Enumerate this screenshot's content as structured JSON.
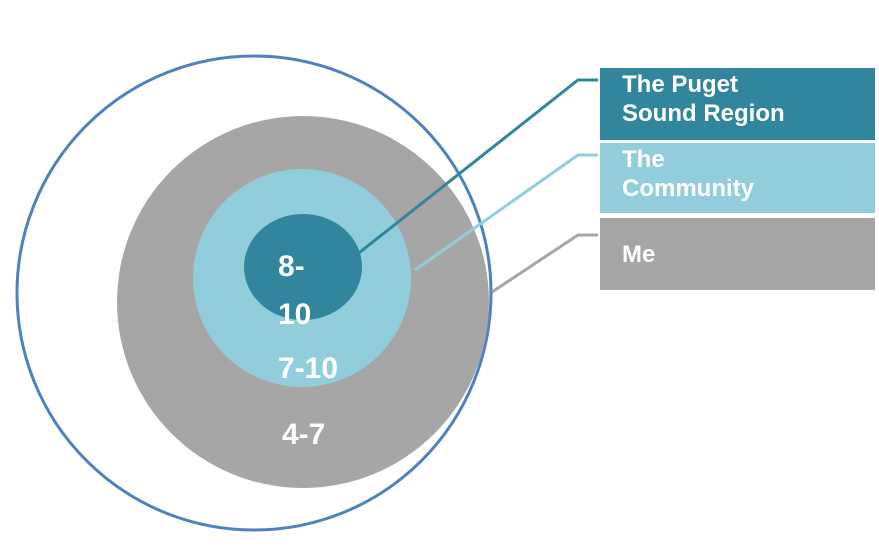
{
  "rings": [
    {
      "lines": [
        "8-",
        "10"
      ]
    },
    {
      "lines": [
        "7-10"
      ]
    },
    {
      "lines": [
        "4-7"
      ]
    }
  ],
  "legend": [
    {
      "lines": [
        "The Puget",
        "Sound Region"
      ]
    },
    {
      "lines": [
        "The",
        "Community"
      ]
    },
    {
      "lines": [
        "Me"
      ]
    }
  ]
}
